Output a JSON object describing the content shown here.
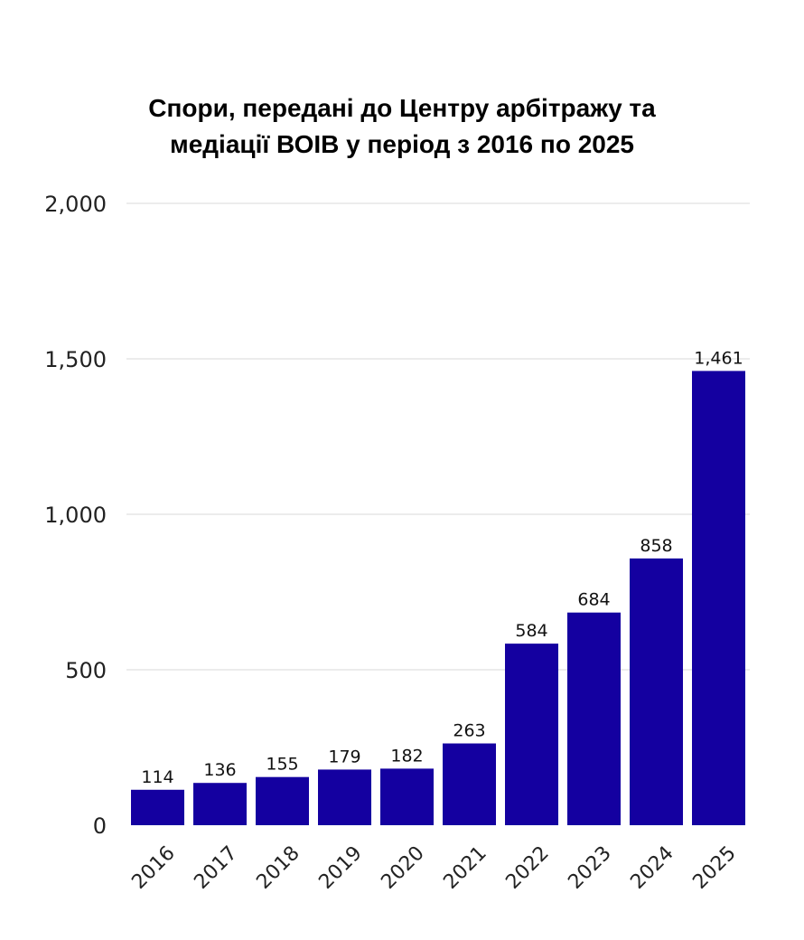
{
  "chart_data": {
    "type": "bar",
    "title_lines": [
      "Спори, передані до Центру арбітражу та",
      "медіації ВОІВ у період з 2016 по 2025"
    ],
    "categories": [
      "2016",
      "2017",
      "2018",
      "2019",
      "2020",
      "2021",
      "2022",
      "2023",
      "2024",
      "2025"
    ],
    "values": [
      114,
      136,
      155,
      179,
      182,
      263,
      584,
      684,
      858,
      1461
    ],
    "value_labels": [
      "114",
      "136",
      "155",
      "179",
      "182",
      "263",
      "584",
      "684",
      "858",
      "1,461"
    ],
    "y_ticks": [
      0,
      500,
      1000,
      1500,
      2000
    ],
    "y_tick_labels": [
      "0",
      "500",
      "1,000",
      "1,500",
      "2,000"
    ],
    "ylim": [
      0,
      2000
    ],
    "grid": true,
    "bar_color": "#1400a0",
    "grid_color": "#d9d9d9"
  }
}
